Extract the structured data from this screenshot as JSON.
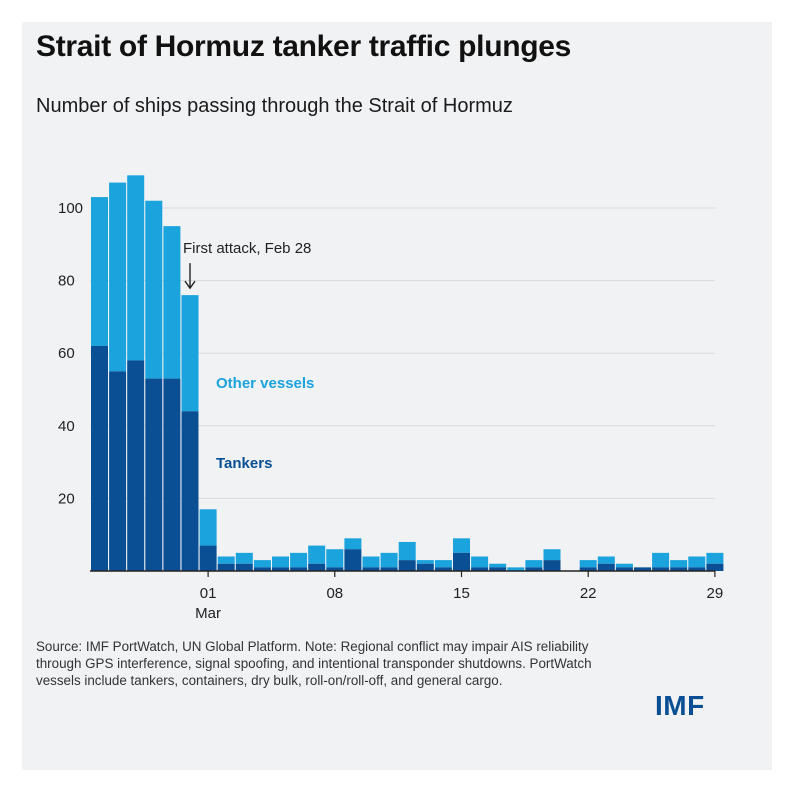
{
  "title": "Strait of Hormuz tanker traffic plunges",
  "subtitle": "Number of ships passing through the Strait of Hormuz",
  "source_note": "Source: IMF PortWatch, UN Global Platform. Note: Regional conflict may impair AIS reliability through GPS interference, signal spoofing, and intentional transponder shutdowns. PortWatch vessels include tankers, containers, dry bulk, roll-on/roll-off, and general cargo.",
  "logo": "IMF",
  "colors": {
    "tankers": "#0a4f94",
    "other": "#1aa3dc",
    "grid": "#d7d9dc",
    "axis": "#222222"
  },
  "chart_data": {
    "type": "bar",
    "stacked": true,
    "title": "Strait of Hormuz tanker traffic plunges",
    "subtitle": "Number of ships passing through the Strait of Hormuz",
    "ylim": [
      0,
      110
    ],
    "y_ticks": [
      20,
      40,
      60,
      80,
      100
    ],
    "x_ticks": [
      {
        "label": "01",
        "sublabel": "Mar",
        "index": 6
      },
      {
        "label": "08",
        "sublabel": "",
        "index": 13
      },
      {
        "label": "15",
        "sublabel": "",
        "index": 20
      },
      {
        "label": "22",
        "sublabel": "",
        "index": 27
      },
      {
        "label": "29",
        "sublabel": "",
        "index": 34
      }
    ],
    "categories": [
      "Feb 23",
      "Feb 24",
      "Feb 25",
      "Feb 26",
      "Feb 27",
      "Feb 28",
      "Mar 01",
      "Mar 02",
      "Mar 03",
      "Mar 04",
      "Mar 05",
      "Mar 06",
      "Mar 07",
      "Mar 08",
      "Mar 09",
      "Mar 10",
      "Mar 11",
      "Mar 12",
      "Mar 13",
      "Mar 14",
      "Mar 15",
      "Mar 16",
      "Mar 17",
      "Mar 18",
      "Mar 19",
      "Mar 20",
      "Mar 21",
      "Mar 22",
      "Mar 23",
      "Mar 24",
      "Mar 25",
      "Mar 26",
      "Mar 27",
      "Mar 28",
      "Mar 29"
    ],
    "series": [
      {
        "name": "Tankers",
        "values": [
          62,
          55,
          58,
          53,
          53,
          44,
          7,
          2,
          2,
          1,
          1,
          1,
          2,
          1,
          6,
          1,
          1,
          3,
          2,
          1,
          5,
          1,
          1,
          0,
          1,
          3,
          0,
          1,
          2,
          1,
          1,
          1,
          1,
          1,
          2
        ]
      },
      {
        "name": "Other vessels",
        "values": [
          41,
          52,
          51,
          49,
          42,
          32,
          10,
          2,
          3,
          2,
          3,
          4,
          5,
          5,
          3,
          3,
          4,
          5,
          1,
          2,
          4,
          3,
          1,
          1,
          2,
          3,
          0,
          2,
          2,
          1,
          0,
          4,
          2,
          3,
          3
        ]
      }
    ],
    "annotations": [
      {
        "text": "First attack, Feb 28",
        "index": 5,
        "arrow": true
      }
    ]
  }
}
